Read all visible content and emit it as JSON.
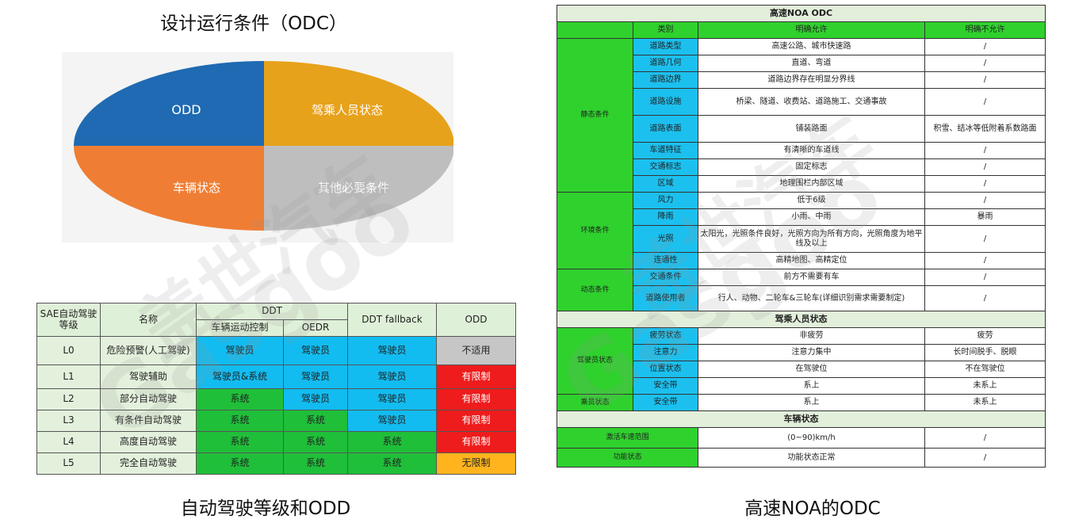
{
  "titles": {
    "odc": "设计运行条件（ODC）",
    "left_caption": "自动驾驶等级和ODD",
    "right_caption": "高速NOA的ODC"
  },
  "pie": {
    "slices": [
      {
        "label": "ODD",
        "color": "#1f6ab2"
      },
      {
        "label": "驾乘人员状态",
        "color": "#e7a21b"
      },
      {
        "label": "车辆状态",
        "color": "#ef7e34"
      },
      {
        "label": "其他必要条件",
        "color": "#bebebe"
      }
    ]
  },
  "sae": {
    "headers": {
      "level": "SAE自动驾驶等级",
      "name": "名称",
      "ddt": "DDT",
      "motion": "车辆运动控制",
      "oedr": "OEDR",
      "fallback": "DDT fallback",
      "odd": "ODD"
    },
    "rows": [
      {
        "level": "L0",
        "name": "危险预警(人工驾驶)",
        "motion": "驾驶员",
        "oedr": "驾驶员",
        "fallback": "驾驶员",
        "odd": "不适用"
      },
      {
        "level": "L1",
        "name": "驾驶辅助",
        "motion": "驾驶员&系统",
        "oedr": "驾驶员",
        "fallback": "驾驶员",
        "odd": "有限制"
      },
      {
        "level": "L2",
        "name": "部分自动驾驶",
        "motion": "系统",
        "oedr": "驾驶员",
        "fallback": "驾驶员",
        "odd": "有限制"
      },
      {
        "level": "L3",
        "name": "有条件自动驾驶",
        "motion": "系统",
        "oedr": "系统",
        "fallback": "驾驶员",
        "odd": "有限制"
      },
      {
        "level": "L4",
        "name": "高度自动驾驶",
        "motion": "系统",
        "oedr": "系统",
        "fallback": "系统",
        "odd": "有限制"
      },
      {
        "level": "L5",
        "name": "完全自动驾驶",
        "motion": "系统",
        "oedr": "系统",
        "fallback": "系统",
        "odd": "无限制"
      }
    ]
  },
  "noa": {
    "title": "高速NOA ODC",
    "headers": {
      "type": "类别",
      "allow": "明确允许",
      "deny": "明确不允许"
    },
    "groups": {
      "static": "静态条件",
      "env": "环境条件",
      "dynamic": "动态条件",
      "driver_section": "驾乘人员状态",
      "driver": "驾驶员状态",
      "passenger": "乘员状态",
      "vehicle_section": "车辆状态"
    },
    "rows": [
      {
        "type": "道路类型",
        "allow": "高速公路、城市快速路",
        "deny": "/"
      },
      {
        "type": "道路几何",
        "allow": "直道、弯道",
        "deny": "/"
      },
      {
        "type": "道路边界",
        "allow": "道路边界存在明显分界线",
        "deny": "/"
      },
      {
        "type": "道路设施",
        "allow": "桥梁、隧道、收费站、道路施工、交通事故",
        "deny": "/"
      },
      {
        "type": "道路表面",
        "allow": "铺装路面",
        "deny": "积雪、结冰等低附着系数路面"
      },
      {
        "type": "车道特征",
        "allow": "有清晰的车道线",
        "deny": "/"
      },
      {
        "type": "交通标志",
        "allow": "固定标志",
        "deny": "/"
      },
      {
        "type": "区域",
        "allow": "地理围栏内部区域",
        "deny": "/"
      },
      {
        "type": "风力",
        "allow": "低于6级",
        "deny": "/"
      },
      {
        "type": "降雨",
        "allow": "小雨、中雨",
        "deny": "暴雨"
      },
      {
        "type": "光照",
        "allow": "太阳光，光照条件良好，光照方向为所有方向，光照角度为地平线及以上",
        "deny": "/"
      },
      {
        "type": "连通性",
        "allow": "高精地图、高精定位",
        "deny": "/"
      },
      {
        "type": "交通条件",
        "allow": "前方不需要有车",
        "deny": "/"
      },
      {
        "type": "道路使用者",
        "allow": "行人、动物、二轮车&三轮车(详细识别需求需要制定)",
        "deny": "/"
      },
      {
        "type": "疲劳状态",
        "allow": "非疲劳",
        "deny": "疲劳"
      },
      {
        "type": "注意力",
        "allow": "注意力集中",
        "deny": "长时间脱手、脱眼"
      },
      {
        "type": "位置状态",
        "allow": "在驾驶位",
        "deny": "不在驾驶位"
      },
      {
        "type": "安全带",
        "allow": "系上",
        "deny": "未系上"
      },
      {
        "type": "安全带",
        "allow": "系上",
        "deny": "未系上"
      },
      {
        "type": "激活车速范围",
        "allow": "(0~90)km/h",
        "deny": "/"
      },
      {
        "type": "功能状态",
        "allow": "功能状态正常",
        "deny": "/"
      }
    ]
  },
  "watermark": {
    "cn": "盖世汽车",
    "en": "Gasgoo"
  }
}
